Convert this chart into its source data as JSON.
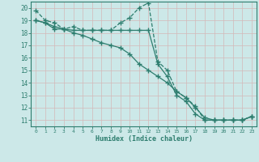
{
  "title": "",
  "xlabel": "Humidex (Indice chaleur)",
  "ylabel": "",
  "bg_color": "#cce8e8",
  "line_color": "#2d7d6e",
  "grid_color": "#b8d8d0",
  "xlim": [
    -0.5,
    23.5
  ],
  "ylim": [
    10.5,
    20.5
  ],
  "xticks": [
    0,
    1,
    2,
    3,
    4,
    5,
    6,
    7,
    8,
    9,
    10,
    11,
    12,
    13,
    14,
    15,
    16,
    17,
    18,
    19,
    20,
    21,
    22,
    23
  ],
  "yticks": [
    11,
    12,
    13,
    14,
    15,
    16,
    17,
    18,
    19,
    20
  ],
  "line1_x": [
    0,
    1,
    2,
    3,
    4,
    5,
    6,
    7,
    8,
    9,
    10,
    11,
    12,
    13,
    14,
    15,
    16,
    17,
    18,
    19,
    20,
    21,
    22,
    23
  ],
  "line1_y": [
    19.8,
    19.0,
    18.8,
    18.3,
    18.5,
    18.2,
    18.2,
    18.2,
    18.2,
    18.8,
    19.2,
    20.0,
    20.4,
    15.7,
    15.0,
    13.3,
    12.8,
    12.1,
    11.0,
    11.0,
    11.0,
    11.0,
    11.0,
    11.3
  ],
  "line2_x": [
    0,
    1,
    2,
    3,
    4,
    5,
    6,
    7,
    8,
    9,
    10,
    11,
    12,
    13,
    14,
    15,
    16,
    17,
    18,
    19,
    20,
    21,
    22,
    23
  ],
  "line2_y": [
    19.0,
    18.8,
    18.3,
    18.3,
    18.2,
    18.2,
    18.2,
    18.2,
    18.2,
    18.2,
    18.2,
    18.2,
    18.2,
    15.5,
    14.5,
    13.0,
    12.5,
    11.5,
    11.0,
    11.0,
    11.0,
    11.0,
    11.0,
    11.3
  ],
  "line3_x": [
    0,
    1,
    2,
    3,
    4,
    5,
    6,
    7,
    8,
    9,
    10,
    11,
    12,
    13,
    14,
    15,
    16,
    17,
    18,
    19,
    20,
    21,
    22,
    23
  ],
  "line3_y": [
    19.0,
    18.8,
    18.5,
    18.3,
    18.0,
    17.8,
    17.5,
    17.2,
    17.0,
    16.8,
    16.3,
    15.5,
    15.0,
    14.5,
    14.0,
    13.3,
    12.8,
    12.0,
    11.2,
    11.0,
    11.0,
    11.0,
    11.0,
    11.3
  ]
}
